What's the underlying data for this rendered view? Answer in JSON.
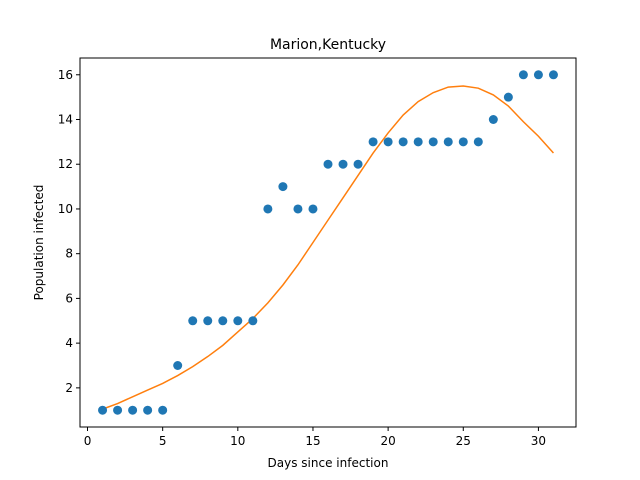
{
  "chart_data": {
    "type": "scatter",
    "title": "Marion,Kentucky",
    "xlabel": "Days since infection",
    "ylabel": "Population infected",
    "xlim": [
      -0.5,
      32.5
    ],
    "ylim": [
      0.25,
      16.75
    ],
    "xticks": [
      0,
      5,
      10,
      15,
      20,
      25,
      30
    ],
    "yticks": [
      2,
      4,
      6,
      8,
      10,
      12,
      14,
      16
    ],
    "grid": false,
    "series": [
      {
        "kind": "scatter",
        "color": "#1f77b4",
        "x": [
          1,
          2,
          3,
          4,
          5,
          6,
          7,
          8,
          9,
          10,
          11,
          12,
          13,
          14,
          15,
          16,
          17,
          18,
          19,
          20,
          21,
          22,
          23,
          24,
          25,
          26,
          27,
          28,
          29,
          30,
          31
        ],
        "y": [
          1,
          1,
          1,
          1,
          1,
          3,
          5,
          5,
          5,
          5,
          5,
          10,
          11,
          10,
          10,
          12,
          12,
          12,
          13,
          13,
          13,
          13,
          13,
          13,
          13,
          13,
          14,
          15,
          16,
          16,
          16
        ]
      },
      {
        "kind": "line",
        "color": "#ff7f0e",
        "x": [
          1,
          2,
          3,
          4,
          5,
          6,
          7,
          8,
          9,
          10,
          11,
          12,
          13,
          14,
          15,
          16,
          17,
          18,
          19,
          20,
          21,
          22,
          23,
          24,
          25,
          26,
          27,
          28,
          29,
          30,
          31
        ],
        "y": [
          1.05,
          1.3,
          1.6,
          1.9,
          2.2,
          2.55,
          2.95,
          3.4,
          3.9,
          4.5,
          5.1,
          5.8,
          6.6,
          7.5,
          8.5,
          9.5,
          10.5,
          11.5,
          12.5,
          13.4,
          14.2,
          14.8,
          15.2,
          15.45,
          15.5,
          15.4,
          15.1,
          14.6,
          13.9,
          13.25,
          12.5
        ]
      }
    ]
  }
}
